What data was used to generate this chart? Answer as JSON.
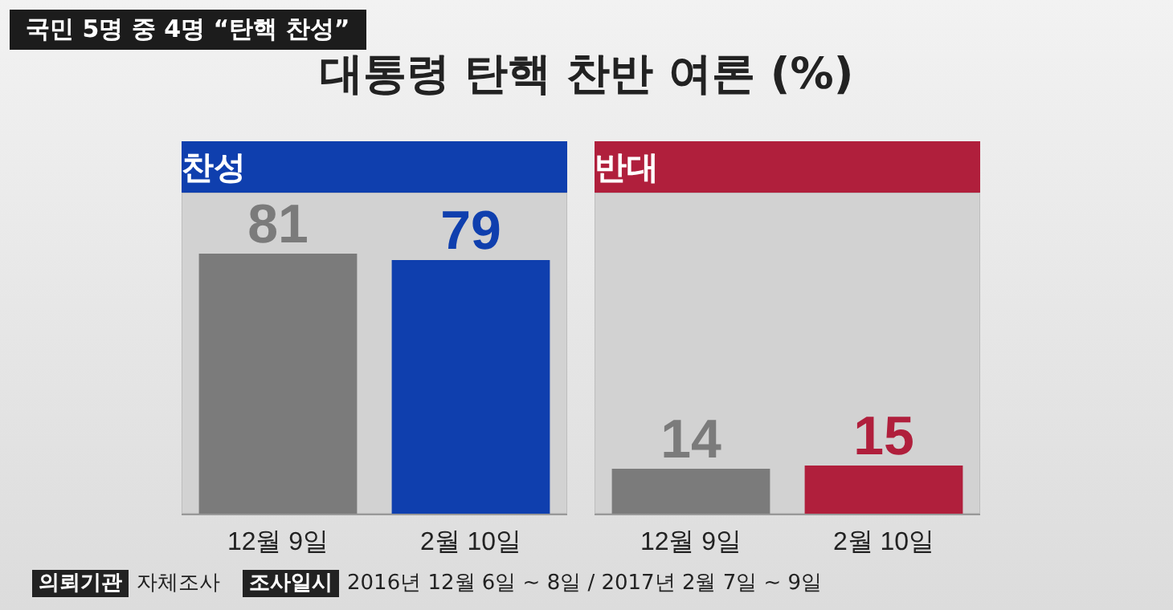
{
  "chart_data": [
    {
      "type": "bar",
      "title": "찬성",
      "categories": [
        "12월 9일",
        "2월 10일"
      ],
      "values": [
        81,
        79
      ],
      "colors": [
        "#7b7b7b",
        "#0f3fae"
      ],
      "ylim": [
        0,
        100
      ],
      "tick_labels": "x",
      "data_labels": true,
      "grid": false
    },
    {
      "type": "bar",
      "title": "반대",
      "categories": [
        "12월 9일",
        "2월 10일"
      ],
      "values": [
        14,
        15
      ],
      "colors": [
        "#7b7b7b",
        "#b01f3c"
      ],
      "ylim": [
        0,
        100
      ],
      "tick_labels": "x",
      "data_labels": true,
      "grid": false
    },
    {
      "type": "other",
      "title": "대통령 탄핵 찬반 여론 (%)",
      "subtitle": "국민 5명 중 4명 “탄핵 찬성”",
      "annotations": [
        "의뢰기관 자체조사",
        "조사일시 2016년 12월 6일 ~ 8일 / 2017년 2월 7일 ~ 9일"
      ]
    }
  ]
}
